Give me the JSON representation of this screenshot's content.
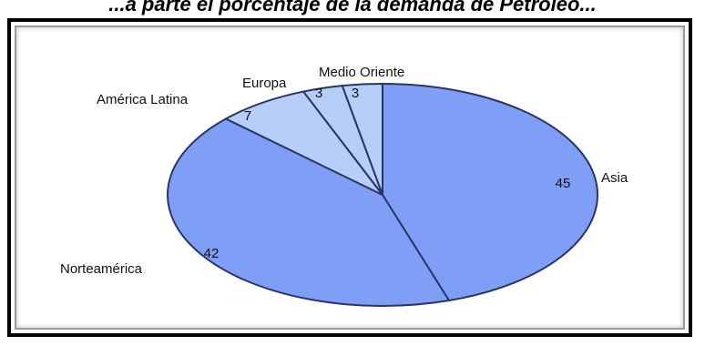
{
  "chart_data": {
    "type": "pie",
    "title": "...a parte el porcentaje de la demanda de Petróleo...",
    "categories": [
      "Asia",
      "Norteamérica",
      "América Latina",
      "Europa",
      "Medio Oriente"
    ],
    "values": [
      45,
      42,
      7,
      3,
      3
    ],
    "value_labels": [
      "45",
      "42",
      "7",
      "3",
      "3"
    ],
    "colors": {
      "Asia": "#7f9ff7",
      "Norteamérica": "#7f9ff7",
      "América Latina": "#b5cff8",
      "Europa": "#b5cff8",
      "Medio Oriente": "#b5cff8"
    },
    "start": "12 o'clock",
    "direction": "clockwise",
    "legend": "none"
  }
}
